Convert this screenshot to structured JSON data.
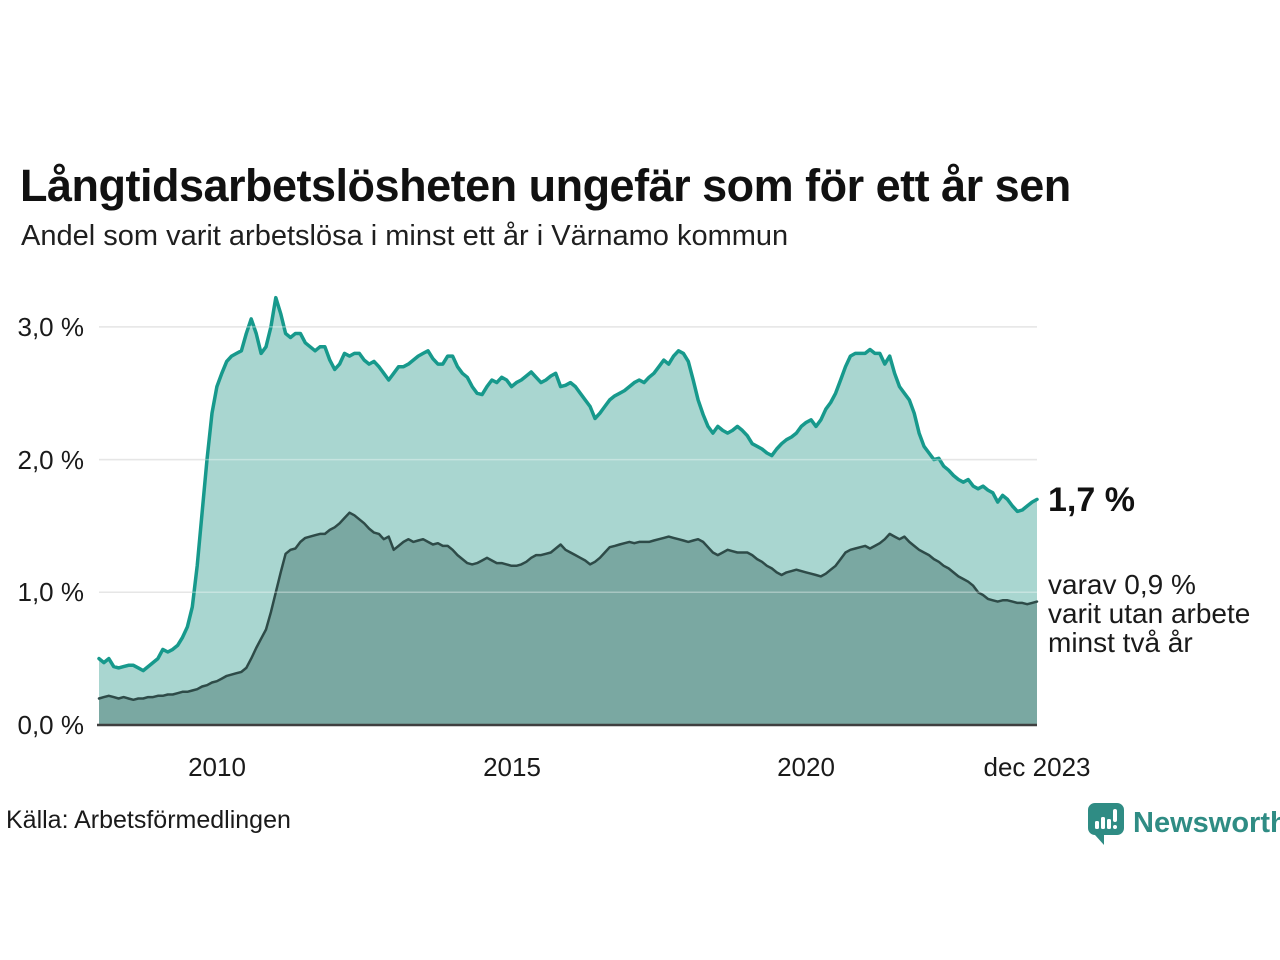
{
  "header": {
    "title": "Långtidsarbetslösheten ungefär som för ett år sen",
    "subtitle": "Andel som varit arbetslösa i minst ett år i Värnamo kommun"
  },
  "annotations": {
    "latest_total": "1,7 %",
    "breakdown_lines": [
      "varav 0,9 %",
      "varit utan arbete",
      "minst två år"
    ]
  },
  "footer": {
    "source": "Källa: Arbetsförmedlingen",
    "brand_name": "Newsworthy"
  },
  "colors": {
    "series1_line": "#17998c",
    "series1_fill": "#a9d6d0",
    "series2_line": "#2e4b48",
    "series2_fill": "#7aa8a2",
    "gridline": "#d9d9d9",
    "axis_line": "#3f3f3f",
    "text": "#1a1a1a",
    "brand_teal": "#2f8c84"
  },
  "chart_data": {
    "type": "area",
    "title": "Andel som varit arbetslösa i minst ett år i Värnamo kommun",
    "unit": "%",
    "frequency": "monthly",
    "x_start": "2008-01",
    "x_end": "2023-12",
    "x_tick_labels": [
      "2010",
      "2015",
      "2020",
      "dec 2023"
    ],
    "x_tick_indexes": [
      24,
      84,
      144,
      191
    ],
    "y_tick_values": [
      0,
      1,
      2,
      3
    ],
    "y_tick_labels": [
      "0,0 %",
      "1,0 %",
      "2,0 %",
      "3,0 %"
    ],
    "ylim": [
      0,
      3.3
    ],
    "grid": true,
    "legend": "none (direct labels at line ends)",
    "series": [
      {
        "name": "Andel arbetslösa minst ett år",
        "latest_label": "1,7 %",
        "color": "#17998c",
        "fill": "#a9d6d0",
        "values": [
          0.5,
          0.47,
          0.5,
          0.44,
          0.43,
          0.44,
          0.45,
          0.45,
          0.43,
          0.41,
          0.44,
          0.47,
          0.5,
          0.57,
          0.55,
          0.57,
          0.6,
          0.66,
          0.74,
          0.89,
          1.2,
          1.6,
          2.0,
          2.35,
          2.55,
          2.65,
          2.74,
          2.78,
          2.8,
          2.82,
          2.95,
          3.06,
          2.95,
          2.8,
          2.85,
          3.0,
          3.22,
          3.1,
          2.95,
          2.92,
          2.95,
          2.95,
          2.88,
          2.85,
          2.82,
          2.85,
          2.85,
          2.75,
          2.68,
          2.72,
          2.8,
          2.78,
          2.8,
          2.8,
          2.75,
          2.72,
          2.74,
          2.7,
          2.65,
          2.6,
          2.65,
          2.7,
          2.7,
          2.72,
          2.75,
          2.78,
          2.8,
          2.82,
          2.76,
          2.72,
          2.72,
          2.78,
          2.78,
          2.7,
          2.65,
          2.62,
          2.55,
          2.5,
          2.49,
          2.55,
          2.6,
          2.58,
          2.62,
          2.6,
          2.55,
          2.58,
          2.6,
          2.63,
          2.66,
          2.62,
          2.58,
          2.6,
          2.63,
          2.65,
          2.55,
          2.56,
          2.58,
          2.55,
          2.5,
          2.45,
          2.4,
          2.31,
          2.35,
          2.4,
          2.45,
          2.48,
          2.5,
          2.52,
          2.55,
          2.58,
          2.6,
          2.58,
          2.62,
          2.65,
          2.7,
          2.75,
          2.72,
          2.78,
          2.82,
          2.8,
          2.74,
          2.6,
          2.45,
          2.34,
          2.25,
          2.2,
          2.25,
          2.22,
          2.2,
          2.22,
          2.25,
          2.22,
          2.18,
          2.12,
          2.1,
          2.08,
          2.05,
          2.03,
          2.08,
          2.12,
          2.15,
          2.17,
          2.2,
          2.25,
          2.28,
          2.3,
          2.25,
          2.3,
          2.38,
          2.43,
          2.5,
          2.6,
          2.7,
          2.78,
          2.8,
          2.8,
          2.8,
          2.83,
          2.8,
          2.8,
          2.72,
          2.78,
          2.65,
          2.55,
          2.5,
          2.45,
          2.35,
          2.2,
          2.1,
          2.05,
          2.0,
          2.01,
          1.95,
          1.92,
          1.88,
          1.85,
          1.83,
          1.85,
          1.8,
          1.78,
          1.8,
          1.77,
          1.75,
          1.68,
          1.73,
          1.7,
          1.65,
          1.61,
          1.62,
          1.65,
          1.68,
          1.7
        ]
      },
      {
        "name": "Andel arbetslösa minst två år",
        "latest_label": "0,9 %",
        "color": "#2e4b48",
        "fill": "#7aa8a2",
        "values": [
          0.2,
          0.21,
          0.22,
          0.21,
          0.2,
          0.21,
          0.2,
          0.19,
          0.2,
          0.2,
          0.21,
          0.21,
          0.22,
          0.22,
          0.23,
          0.23,
          0.24,
          0.25,
          0.25,
          0.26,
          0.27,
          0.29,
          0.3,
          0.32,
          0.33,
          0.35,
          0.37,
          0.38,
          0.39,
          0.4,
          0.43,
          0.5,
          0.58,
          0.65,
          0.72,
          0.85,
          1.0,
          1.15,
          1.29,
          1.32,
          1.33,
          1.38,
          1.41,
          1.42,
          1.43,
          1.44,
          1.44,
          1.47,
          1.49,
          1.52,
          1.56,
          1.6,
          1.58,
          1.55,
          1.52,
          1.48,
          1.45,
          1.44,
          1.4,
          1.42,
          1.32,
          1.35,
          1.38,
          1.4,
          1.38,
          1.39,
          1.4,
          1.38,
          1.36,
          1.37,
          1.35,
          1.35,
          1.32,
          1.28,
          1.25,
          1.22,
          1.21,
          1.22,
          1.24,
          1.26,
          1.24,
          1.22,
          1.22,
          1.21,
          1.2,
          1.2,
          1.21,
          1.23,
          1.26,
          1.28,
          1.28,
          1.29,
          1.3,
          1.33,
          1.36,
          1.32,
          1.3,
          1.28,
          1.26,
          1.24,
          1.21,
          1.23,
          1.26,
          1.3,
          1.34,
          1.35,
          1.36,
          1.37,
          1.38,
          1.37,
          1.38,
          1.38,
          1.38,
          1.39,
          1.4,
          1.41,
          1.42,
          1.41,
          1.4,
          1.39,
          1.38,
          1.39,
          1.4,
          1.38,
          1.34,
          1.3,
          1.28,
          1.3,
          1.32,
          1.31,
          1.3,
          1.3,
          1.3,
          1.28,
          1.25,
          1.23,
          1.2,
          1.18,
          1.15,
          1.13,
          1.15,
          1.16,
          1.17,
          1.16,
          1.15,
          1.14,
          1.13,
          1.12,
          1.14,
          1.17,
          1.2,
          1.25,
          1.3,
          1.32,
          1.33,
          1.34,
          1.35,
          1.33,
          1.35,
          1.37,
          1.4,
          1.44,
          1.42,
          1.4,
          1.42,
          1.38,
          1.35,
          1.32,
          1.3,
          1.28,
          1.25,
          1.23,
          1.2,
          1.18,
          1.15,
          1.12,
          1.1,
          1.08,
          1.05,
          1.0,
          0.98,
          0.95,
          0.94,
          0.93,
          0.94,
          0.94,
          0.93,
          0.92,
          0.92,
          0.91,
          0.92,
          0.93
        ]
      }
    ]
  }
}
